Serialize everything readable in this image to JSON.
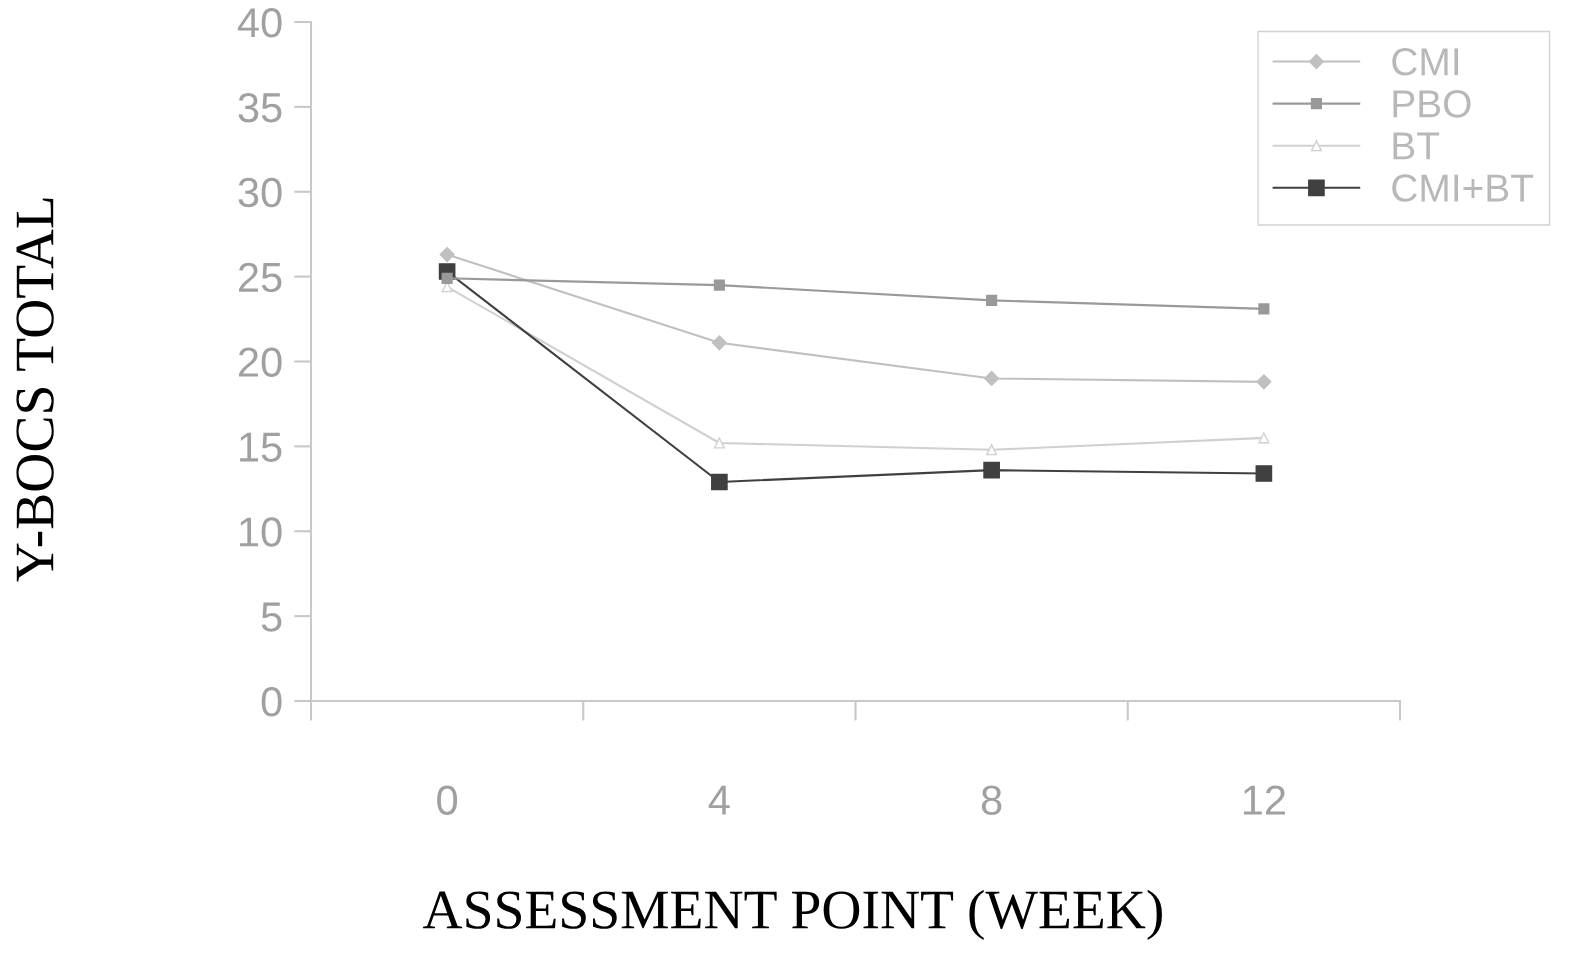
{
  "chart_data": {
    "type": "line",
    "xlabel": "ASSESSMENT POINT (WEEK)",
    "ylabel": "Y-BOCS TOTAL",
    "categories": [
      "0",
      "4",
      "8",
      "12"
    ],
    "series": [
      {
        "name": "CMI",
        "color": "#c0c0c0",
        "marker": "diamond",
        "values": [
          26.3,
          21.1,
          19.0,
          18.8
        ]
      },
      {
        "name": "PBO",
        "color": "#999999",
        "marker": "square",
        "values": [
          24.9,
          24.5,
          23.6,
          23.1
        ]
      },
      {
        "name": "BT",
        "color": "#d0d0d0",
        "marker": "triangle",
        "values": [
          24.4,
          15.2,
          14.8,
          15.5
        ]
      },
      {
        "name": "CMI+BT",
        "color": "#404040",
        "marker": "square",
        "values": [
          25.3,
          12.9,
          13.6,
          13.4
        ]
      }
    ],
    "ylim": [
      0,
      40
    ],
    "yticks": [
      0,
      5,
      10,
      15,
      20,
      25,
      30,
      35,
      40
    ],
    "grid": false,
    "legend": "top right",
    "line_style": "solid"
  }
}
